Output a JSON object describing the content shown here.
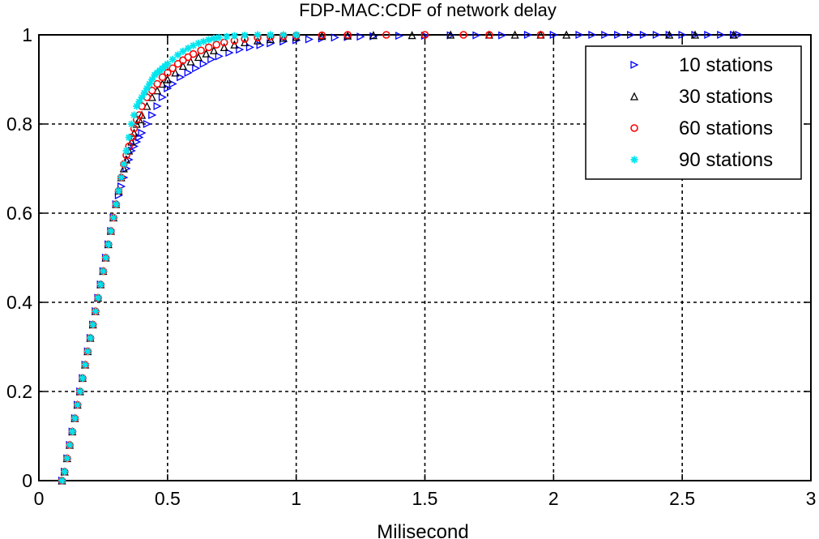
{
  "chart_data": {
    "type": "scatter",
    "title": "FDP-MAC:CDF of network delay",
    "xlabel": "Milisecond",
    "ylabel": "",
    "xlim": [
      0,
      3
    ],
    "ylim": [
      0,
      1
    ],
    "xticks": [
      0,
      0.5,
      1,
      1.5,
      2,
      2.5,
      3
    ],
    "yticks": [
      0,
      0.2,
      0.4,
      0.6,
      0.8,
      1
    ],
    "xtick_labels": [
      "0",
      "0.5",
      "1",
      "1.5",
      "2",
      "2.5",
      "3"
    ],
    "ytick_labels": [
      "0",
      "0.2",
      "0.4",
      "0.6",
      "0.8",
      "1"
    ],
    "grid": true,
    "legend_position": "top-right",
    "series": [
      {
        "name": "10 stations",
        "color": "#0000ff",
        "marker": "triangle-right",
        "x": [
          0.09,
          0.1,
          0.11,
          0.12,
          0.13,
          0.14,
          0.15,
          0.16,
          0.17,
          0.18,
          0.19,
          0.2,
          0.21,
          0.22,
          0.23,
          0.24,
          0.25,
          0.26,
          0.27,
          0.28,
          0.29,
          0.3,
          0.31,
          0.32,
          0.33,
          0.34,
          0.35,
          0.36,
          0.37,
          0.38,
          0.39,
          0.4,
          0.42,
          0.44,
          0.46,
          0.48,
          0.5,
          0.52,
          0.55,
          0.58,
          0.61,
          0.64,
          0.67,
          0.7,
          0.74,
          0.78,
          0.82,
          0.86,
          0.9,
          0.95,
          1.0,
          1.05,
          1.1,
          1.15,
          1.2,
          1.25,
          1.3,
          1.4,
          1.5,
          1.6,
          1.7,
          1.8,
          1.9,
          2.0,
          2.1,
          2.15,
          2.2,
          2.25,
          2.3,
          2.35,
          2.4,
          2.45,
          2.5,
          2.55,
          2.6,
          2.65,
          2.7,
          2.72
        ],
        "y": [
          0.0,
          0.02,
          0.05,
          0.08,
          0.11,
          0.14,
          0.17,
          0.2,
          0.23,
          0.26,
          0.29,
          0.32,
          0.35,
          0.38,
          0.41,
          0.44,
          0.47,
          0.5,
          0.53,
          0.56,
          0.59,
          0.62,
          0.64,
          0.66,
          0.68,
          0.7,
          0.72,
          0.74,
          0.75,
          0.76,
          0.77,
          0.78,
          0.8,
          0.82,
          0.84,
          0.86,
          0.88,
          0.89,
          0.905,
          0.915,
          0.925,
          0.935,
          0.945,
          0.952,
          0.96,
          0.967,
          0.972,
          0.977,
          0.981,
          0.985,
          0.988,
          0.99,
          0.992,
          0.994,
          0.995,
          0.996,
          0.997,
          0.998,
          0.998,
          0.999,
          0.999,
          0.999,
          1.0,
          1.0,
          1.0,
          1.0,
          1.0,
          1.0,
          1.0,
          1.0,
          1.0,
          1.0,
          1.0,
          1.0,
          1.0,
          1.0,
          1.0,
          1.0
        ]
      },
      {
        "name": "30 stations",
        "color": "#000000",
        "marker": "triangle-up",
        "x": [
          0.09,
          0.1,
          0.11,
          0.12,
          0.13,
          0.14,
          0.15,
          0.16,
          0.17,
          0.18,
          0.19,
          0.2,
          0.21,
          0.22,
          0.23,
          0.24,
          0.25,
          0.26,
          0.27,
          0.28,
          0.29,
          0.3,
          0.31,
          0.32,
          0.33,
          0.34,
          0.35,
          0.36,
          0.37,
          0.38,
          0.39,
          0.4,
          0.42,
          0.44,
          0.46,
          0.48,
          0.5,
          0.53,
          0.56,
          0.59,
          0.62,
          0.65,
          0.68,
          0.72,
          0.76,
          0.8,
          0.85,
          0.9,
          0.95,
          1.0,
          1.1,
          1.2,
          1.3,
          1.45,
          1.6,
          1.75,
          1.85,
          1.95,
          2.05,
          2.45,
          2.55,
          2.7
        ],
        "y": [
          0.0,
          0.02,
          0.05,
          0.08,
          0.11,
          0.14,
          0.17,
          0.2,
          0.23,
          0.26,
          0.29,
          0.32,
          0.35,
          0.38,
          0.41,
          0.44,
          0.47,
          0.5,
          0.53,
          0.56,
          0.59,
          0.62,
          0.65,
          0.68,
          0.7,
          0.72,
          0.74,
          0.76,
          0.78,
          0.8,
          0.81,
          0.82,
          0.84,
          0.86,
          0.875,
          0.89,
          0.9,
          0.915,
          0.93,
          0.94,
          0.95,
          0.958,
          0.965,
          0.972,
          0.978,
          0.983,
          0.987,
          0.99,
          0.993,
          0.995,
          0.997,
          0.998,
          0.999,
          0.999,
          1.0,
          1.0,
          1.0,
          1.0,
          1.0,
          1.0,
          1.0,
          1.0
        ]
      },
      {
        "name": "60 stations",
        "color": "#ff0000",
        "marker": "circle",
        "x": [
          0.09,
          0.1,
          0.11,
          0.12,
          0.13,
          0.14,
          0.15,
          0.16,
          0.17,
          0.18,
          0.19,
          0.2,
          0.21,
          0.22,
          0.23,
          0.24,
          0.25,
          0.26,
          0.27,
          0.28,
          0.29,
          0.3,
          0.31,
          0.32,
          0.33,
          0.34,
          0.35,
          0.36,
          0.37,
          0.38,
          0.39,
          0.4,
          0.42,
          0.44,
          0.46,
          0.48,
          0.5,
          0.52,
          0.54,
          0.56,
          0.58,
          0.6,
          0.63,
          0.66,
          0.69,
          0.72,
          0.76,
          0.8,
          0.85,
          0.9,
          0.95,
          1.0,
          1.1,
          1.2,
          1.35,
          1.5,
          1.65,
          1.75,
          1.95
        ],
        "y": [
          0.0,
          0.02,
          0.05,
          0.08,
          0.11,
          0.14,
          0.17,
          0.2,
          0.23,
          0.26,
          0.29,
          0.32,
          0.35,
          0.38,
          0.41,
          0.44,
          0.47,
          0.5,
          0.53,
          0.56,
          0.59,
          0.62,
          0.65,
          0.68,
          0.71,
          0.73,
          0.75,
          0.77,
          0.79,
          0.81,
          0.82,
          0.84,
          0.86,
          0.875,
          0.89,
          0.905,
          0.915,
          0.925,
          0.935,
          0.943,
          0.95,
          0.957,
          0.965,
          0.972,
          0.978,
          0.983,
          0.987,
          0.991,
          0.994,
          0.996,
          0.997,
          0.998,
          0.999,
          1.0,
          1.0,
          1.0,
          1.0,
          1.0,
          1.0
        ]
      },
      {
        "name": "90 stations",
        "color": "#00e5ee",
        "marker": "star",
        "x": [
          0.09,
          0.1,
          0.11,
          0.12,
          0.13,
          0.14,
          0.15,
          0.16,
          0.17,
          0.18,
          0.19,
          0.2,
          0.21,
          0.22,
          0.23,
          0.24,
          0.25,
          0.26,
          0.27,
          0.28,
          0.29,
          0.3,
          0.31,
          0.32,
          0.33,
          0.34,
          0.35,
          0.36,
          0.37,
          0.38,
          0.39,
          0.4,
          0.41,
          0.42,
          0.43,
          0.44,
          0.45,
          0.46,
          0.47,
          0.48,
          0.49,
          0.5,
          0.52,
          0.54,
          0.56,
          0.58,
          0.6,
          0.62,
          0.64,
          0.66,
          0.68,
          0.7,
          0.73,
          0.76,
          0.8,
          0.85,
          0.9,
          0.95,
          1.0
        ],
        "y": [
          0.0,
          0.02,
          0.05,
          0.08,
          0.11,
          0.14,
          0.17,
          0.2,
          0.23,
          0.26,
          0.29,
          0.32,
          0.35,
          0.38,
          0.41,
          0.44,
          0.47,
          0.5,
          0.53,
          0.56,
          0.59,
          0.62,
          0.65,
          0.68,
          0.71,
          0.74,
          0.77,
          0.8,
          0.82,
          0.84,
          0.85,
          0.86,
          0.87,
          0.88,
          0.89,
          0.9,
          0.91,
          0.915,
          0.92,
          0.925,
          0.93,
          0.935,
          0.945,
          0.955,
          0.963,
          0.97,
          0.976,
          0.981,
          0.985,
          0.989,
          0.992,
          0.994,
          0.996,
          0.998,
          0.999,
          1.0,
          1.0,
          1.0,
          1.0
        ]
      }
    ]
  }
}
